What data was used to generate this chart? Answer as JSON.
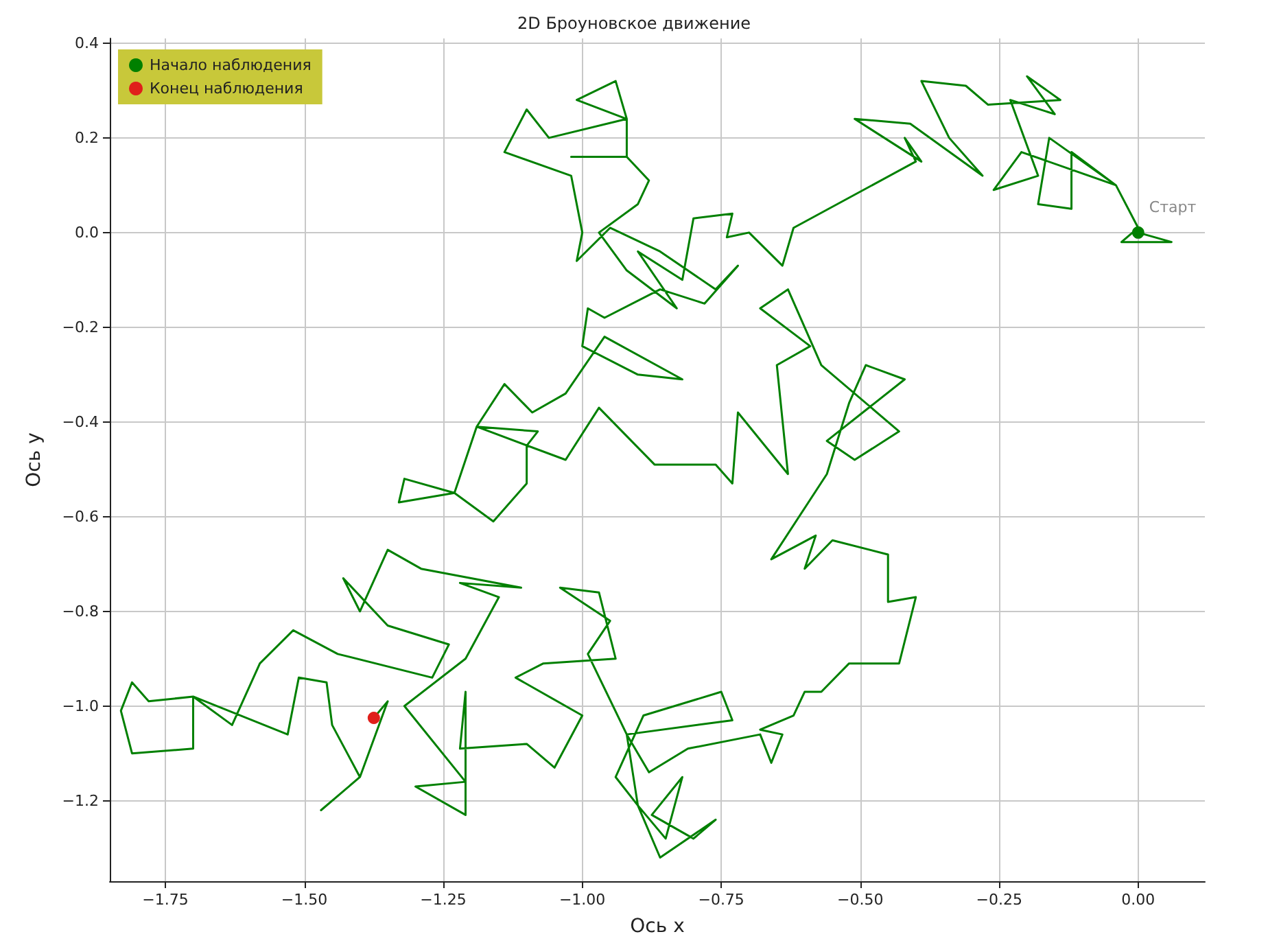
{
  "chart_data": {
    "type": "line",
    "title": "2D Броуновское движение",
    "xlabel": "Ось x",
    "ylabel": "Ось y",
    "xlim": [
      -1.85,
      0.12
    ],
    "xticks": [
      {
        "value": -1.75,
        "label": "−1.75"
      },
      {
        "value": -1.5,
        "label": "−1.50"
      },
      {
        "value": -1.25,
        "label": "−1.25"
      },
      {
        "value": -1.0,
        "label": "−1.00"
      },
      {
        "value": -0.75,
        "label": "−0.75"
      },
      {
        "value": -0.5,
        "label": "−0.50"
      },
      {
        "value": -0.25,
        "label": "−0.25"
      },
      {
        "value": 0,
        "label": "0.00"
      }
    ],
    "ylim": [
      -1.37,
      0.41
    ],
    "yticks": [
      {
        "value": -1.2,
        "label": "−1.2"
      },
      {
        "value": -1.0,
        "label": "−1.0"
      },
      {
        "value": -0.8,
        "label": "−0.8"
      },
      {
        "value": -0.6,
        "label": "−0.6"
      },
      {
        "value": -0.4,
        "label": "−0.4"
      },
      {
        "value": -0.2,
        "label": "−0.2"
      },
      {
        "value": 0,
        "label": "0.0"
      },
      {
        "value": 0.2,
        "label": "0.2"
      },
      {
        "value": 0.4,
        "label": "0.4"
      }
    ],
    "grid": true,
    "legend": "top left",
    "annotations": [
      {
        "text": "Старт",
        "x": 0,
        "y": 0
      }
    ],
    "series": [
      {
        "color": "#008000",
        "marker": "none",
        "line_style": "solid",
        "x": [
          0,
          0.06,
          -0.03,
          0.0,
          -0.04,
          -0.12,
          -0.12,
          -0.18,
          -0.16,
          -0.04,
          -0.21,
          -0.26,
          -0.18,
          -0.23,
          -0.15,
          -0.2,
          -0.14,
          -0.27,
          -0.31,
          -0.39,
          -0.34,
          -0.28,
          -0.41,
          -0.51,
          -0.39,
          -0.42,
          -0.4,
          -0.62,
          -0.64,
          -0.7,
          -0.74,
          -0.73,
          -0.8,
          -0.82,
          -0.9,
          -0.83,
          -0.92,
          -0.97,
          -0.9,
          -0.88,
          -0.92,
          -1.02,
          -0.92,
          -0.92,
          -0.94,
          -1.01,
          -0.92,
          -1.06,
          -1.1,
          -1.14,
          -1.02,
          -1.0,
          -1.01,
          -0.95,
          -0.86,
          -0.76,
          -0.72,
          -0.78,
          -0.86,
          -0.96,
          -0.99,
          -1.0,
          -0.9,
          -0.82,
          -0.96,
          -1.03,
          -1.09,
          -1.14,
          -1.19,
          -1.08,
          -1.1,
          -1.1,
          -1.16,
          -1.23,
          -1.33,
          -1.32,
          -1.23,
          -1.19,
          -1.03,
          -0.97,
          -0.87,
          -0.76,
          -0.73,
          -0.72,
          -0.63,
          -0.65,
          -0.59,
          -0.68,
          -0.63,
          -0.57,
          -0.43,
          -0.51,
          -0.56,
          -0.42,
          -0.49,
          -0.52,
          -0.56,
          -0.66,
          -0.58,
          -0.6,
          -0.55,
          -0.45,
          -0.45,
          -0.4,
          -0.43,
          -0.52,
          -0.57,
          -0.6,
          -0.62,
          -0.68,
          -0.64,
          -0.66,
          -0.68,
          -0.81,
          -0.88,
          -0.92,
          -0.73,
          -0.75,
          -0.89,
          -0.94,
          -0.9,
          -0.86,
          -0.76,
          -0.8,
          -0.875,
          -0.82,
          -0.85,
          -0.9,
          -0.92,
          -0.99,
          -0.95,
          -1.04,
          -0.97,
          -0.94,
          -1.07,
          -1.12,
          -1.0,
          -1.05,
          -1.1,
          -1.22,
          -1.21,
          -1.21,
          -1.3,
          -1.21,
          -1.32,
          -1.21,
          -1.15,
          -1.22,
          -1.11,
          -1.29,
          -1.35,
          -1.4,
          -1.43,
          -1.35,
          -1.24,
          -1.27,
          -1.44,
          -1.52,
          -1.58,
          -1.63,
          -1.7,
          -1.78,
          -1.81,
          -1.83,
          -1.81,
          -1.7,
          -1.7,
          -1.53,
          -1.51,
          -1.46,
          -1.45,
          -1.4,
          -1.47,
          -1.4,
          -1.35,
          -1.375
        ],
        "values": [
          0,
          -0.02,
          -0.02,
          0.01,
          0.1,
          0.17,
          0.05,
          0.06,
          0.2,
          0.1,
          0.17,
          0.09,
          0.12,
          0.28,
          0.25,
          0.33,
          0.28,
          0.27,
          0.31,
          0.32,
          0.2,
          0.12,
          0.23,
          0.24,
          0.15,
          0.2,
          0.15,
          0.01,
          -0.07,
          0.0,
          -0.01,
          0.04,
          0.03,
          -0.1,
          -0.04,
          -0.16,
          -0.08,
          0.0,
          0.06,
          0.11,
          0.16,
          0.16,
          0.16,
          0.24,
          0.32,
          0.28,
          0.24,
          0.2,
          0.26,
          0.17,
          0.12,
          0.0,
          -0.06,
          0.01,
          -0.04,
          -0.12,
          -0.07,
          -0.15,
          -0.12,
          -0.18,
          -0.16,
          -0.24,
          -0.3,
          -0.31,
          -0.22,
          -0.34,
          -0.38,
          -0.32,
          -0.41,
          -0.42,
          -0.45,
          -0.53,
          -0.61,
          -0.55,
          -0.57,
          -0.52,
          -0.55,
          -0.41,
          -0.48,
          -0.37,
          -0.49,
          -0.49,
          -0.53,
          -0.38,
          -0.51,
          -0.28,
          -0.24,
          -0.16,
          -0.12,
          -0.28,
          -0.42,
          -0.48,
          -0.44,
          -0.31,
          -0.28,
          -0.36,
          -0.51,
          -0.69,
          -0.64,
          -0.71,
          -0.65,
          -0.68,
          -0.78,
          -0.77,
          -0.91,
          -0.91,
          -0.97,
          -0.97,
          -1.02,
          -1.05,
          -1.06,
          -1.12,
          -1.06,
          -1.09,
          -1.14,
          -1.06,
          -1.03,
          -0.97,
          -1.02,
          -1.15,
          -1.21,
          -1.32,
          -1.24,
          -1.28,
          -1.23,
          -1.15,
          -1.28,
          -1.21,
          -1.06,
          -0.89,
          -0.82,
          -0.75,
          -0.76,
          -0.9,
          -0.91,
          -0.94,
          -1.02,
          -1.13,
          -1.08,
          -1.09,
          -0.97,
          -1.23,
          -1.17,
          -1.16,
          -1.0,
          -0.9,
          -0.77,
          -0.74,
          -0.75,
          -0.71,
          -0.67,
          -0.8,
          -0.73,
          -0.83,
          -0.87,
          -0.94,
          -0.89,
          -0.84,
          -0.91,
          -1.04,
          -0.98,
          -0.99,
          -0.95,
          -1.01,
          -1.1,
          -1.09,
          -0.98,
          -1.06,
          -0.94,
          -0.95,
          -1.04,
          -1.15,
          -1.22,
          -1.15,
          -0.99,
          -1.025
        ]
      },
      {
        "type": "scatter",
        "name": "Начало наблюдения",
        "color": "#008000",
        "marker": "circle",
        "x": [
          0
        ],
        "values": [
          0
        ]
      },
      {
        "type": "scatter",
        "name": "Конец наблюдения",
        "color": "#e0201b",
        "marker": "circle",
        "x": [
          -1.375
        ],
        "values": [
          -1.025
        ]
      }
    ]
  }
}
